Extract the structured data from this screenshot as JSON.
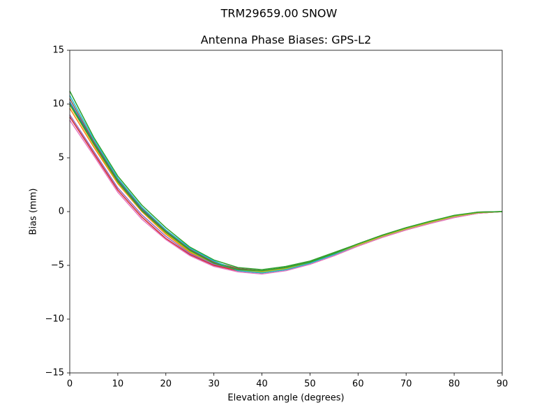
{
  "chart_data": {
    "type": "line",
    "suptitle": "TRM29659.00      SNOW",
    "title": "Antenna Phase Biases: GPS-L2",
    "xlabel": "Elevation angle (degrees)",
    "ylabel": "Bias (mm)",
    "x": [
      0,
      5,
      10,
      15,
      20,
      25,
      30,
      35,
      40,
      45,
      50,
      55,
      60,
      65,
      70,
      75,
      80,
      85,
      90
    ],
    "series": [
      {
        "color": "#1f77b4",
        "values": [
          10.2,
          6.4,
          2.9,
          0.2,
          -1.9,
          -3.6,
          -4.7,
          -5.4,
          -5.6,
          -5.3,
          -4.8,
          -4.0,
          -3.1,
          -2.3,
          -1.6,
          -1.0,
          -0.45,
          -0.1,
          0
        ]
      },
      {
        "color": "#ff7f0e",
        "values": [
          9.6,
          6.0,
          2.6,
          0.0,
          -2.1,
          -3.8,
          -4.9,
          -5.5,
          -5.7,
          -5.4,
          -4.8,
          -4.0,
          -3.2,
          -2.4,
          -1.7,
          -1.1,
          -0.5,
          -0.15,
          0
        ]
      },
      {
        "color": "#2ca02c",
        "values": [
          11.2,
          6.9,
          3.3,
          0.6,
          -1.5,
          -3.3,
          -4.5,
          -5.2,
          -5.4,
          -5.1,
          -4.6,
          -3.8,
          -3.0,
          -2.2,
          -1.5,
          -0.9,
          -0.4,
          -0.05,
          0
        ]
      },
      {
        "color": "#d62728",
        "values": [
          8.8,
          5.4,
          2.0,
          -0.5,
          -2.5,
          -4.0,
          -5.0,
          -5.5,
          -5.7,
          -5.4,
          -4.9,
          -4.1,
          -3.2,
          -2.4,
          -1.7,
          -1.1,
          -0.55,
          -0.15,
          0
        ]
      },
      {
        "color": "#9467bd",
        "values": [
          9.0,
          5.6,
          2.2,
          -0.3,
          -2.3,
          -3.9,
          -4.9,
          -5.4,
          -5.6,
          -5.3,
          -4.8,
          -4.0,
          -3.1,
          -2.3,
          -1.6,
          -1.0,
          -0.5,
          -0.1,
          0
        ]
      },
      {
        "color": "#8c564b",
        "values": [
          10.5,
          6.5,
          3.0,
          0.3,
          -1.8,
          -3.5,
          -4.7,
          -5.3,
          -5.5,
          -5.2,
          -4.7,
          -3.9,
          -3.0,
          -2.2,
          -1.5,
          -0.95,
          -0.4,
          -0.05,
          0
        ]
      },
      {
        "color": "#e377c2",
        "values": [
          8.5,
          5.2,
          1.8,
          -0.7,
          -2.6,
          -4.1,
          -5.1,
          -5.6,
          -5.8,
          -5.5,
          -4.9,
          -4.1,
          -3.2,
          -2.4,
          -1.7,
          -1.1,
          -0.55,
          -0.15,
          0
        ]
      },
      {
        "color": "#17becf",
        "values": [
          10.8,
          6.7,
          3.1,
          0.4,
          -1.7,
          -3.4,
          -4.6,
          -5.5,
          -5.7,
          -5.4,
          -4.8,
          -4.0,
          -3.1,
          -2.3,
          -1.6,
          -1.0,
          -0.45,
          -0.1,
          0
        ]
      },
      {
        "color": "#bcbd22",
        "values": [
          9.9,
          6.2,
          2.7,
          0.1,
          -2.0,
          -3.7,
          -4.8,
          -5.4,
          -5.6,
          -5.3,
          -4.7,
          -3.9,
          -3.1,
          -2.3,
          -1.6,
          -1.0,
          -0.45,
          -0.1,
          0
        ]
      },
      {
        "color": "#2ca02c",
        "values": [
          10.0,
          6.3,
          2.8,
          0.1,
          -1.9,
          -3.6,
          -4.8,
          -5.4,
          -5.5,
          -5.2,
          -4.7,
          -3.9,
          -3.0,
          -2.2,
          -1.5,
          -0.9,
          -0.35,
          -0.05,
          0
        ]
      }
    ],
    "xlim": [
      0,
      90
    ],
    "xticks": [
      0,
      10,
      20,
      30,
      40,
      50,
      60,
      70,
      80,
      90
    ],
    "ylim": [
      -15,
      15
    ],
    "yticks": [
      {
        "value": -15,
        "label": "−15"
      },
      {
        "value": -10,
        "label": "−10"
      },
      {
        "value": -5,
        "label": "−5"
      },
      0,
      5,
      10,
      15
    ]
  }
}
